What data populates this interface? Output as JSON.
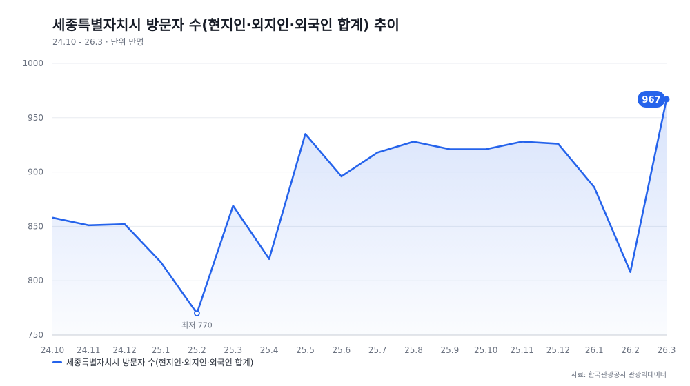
{
  "header": {
    "title": "세종특별자치시 방문자 수(현지인·외지인·외국인 합계) 추이",
    "subtitle": "24.10 - 26.3 · 단위 만명"
  },
  "legend": {
    "label": "세종특별자치시 방문자 수(현지인·외지인·외국인 합계)"
  },
  "source": "자료: 한국관광공사 관광빅데이터",
  "annotations": {
    "min_label": "최저 770",
    "last_label": "967"
  },
  "colors": {
    "line": "#2563eb",
    "grid": "#e8ebf0",
    "axis_text": "#6b7280"
  },
  "chart_data": {
    "type": "area",
    "categories": [
      "24.10",
      "24.11",
      "24.12",
      "25.1",
      "25.2",
      "25.3",
      "25.4",
      "25.5",
      "25.6",
      "25.7",
      "25.8",
      "25.9",
      "25.10",
      "25.11",
      "25.12",
      "26.1",
      "26.2",
      "26.3"
    ],
    "series": [
      {
        "name": "세종특별자치시 방문자 수(현지인·외지인·외국인 합계)",
        "values": [
          858,
          851,
          852,
          817,
          770,
          869,
          820,
          935,
          896,
          918,
          928,
          921,
          921,
          928,
          926,
          886,
          808,
          967
        ]
      }
    ],
    "ylim": [
      750,
      1000
    ],
    "yticks": [
      750,
      800,
      850,
      900,
      950,
      1000
    ],
    "grid": true,
    "legend_position": "bottom-left"
  }
}
